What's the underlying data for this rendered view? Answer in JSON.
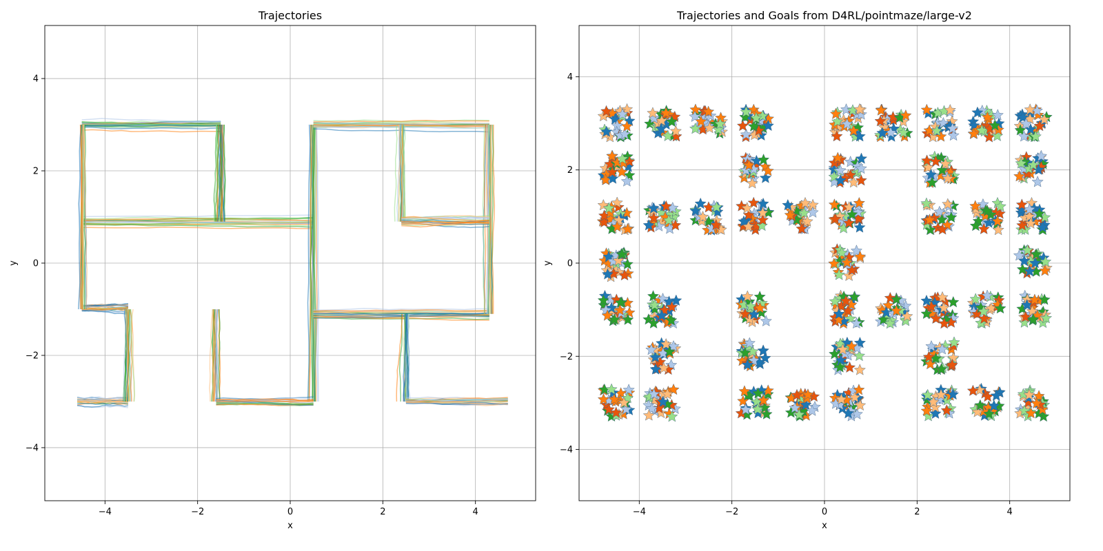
{
  "colors": {
    "palette": [
      "#1f77b4",
      "#ff7f0e",
      "#2ca02c",
      "#aec7e8",
      "#ffbb78",
      "#98df8a",
      "#e6550d"
    ],
    "grid": "#b0b0b0",
    "frame": "#000000"
  },
  "chart_data": [
    {
      "type": "line",
      "title": "Trajectories",
      "xlabel": "x",
      "ylabel": "y",
      "xlim": [
        -5.3,
        5.3
      ],
      "ylim": [
        -5.15,
        5.15
      ],
      "xticks": [
        -4,
        -2,
        0,
        2,
        4
      ],
      "yticks": [
        -4,
        -2,
        0,
        2,
        4
      ],
      "xtick_labels": [
        "−4",
        "−2",
        "0",
        "2",
        "4"
      ],
      "ytick_labels": [
        "−4",
        "−2",
        "0",
        "2",
        "4"
      ],
      "grid": true,
      "description_corridors": [
        [
          [
            -4.5,
            3.0
          ],
          [
            -1.5,
            3.0
          ]
        ],
        [
          [
            -4.5,
            0.9
          ],
          [
            0.5,
            0.9
          ]
        ],
        [
          [
            -4.5,
            -1.0
          ],
          [
            -3.5,
            -1.0
          ]
        ],
        [
          [
            -4.6,
            -3.0
          ],
          [
            -3.5,
            -3.0
          ]
        ],
        [
          [
            -4.5,
            3.0
          ],
          [
            -4.5,
            -1.0
          ]
        ],
        [
          [
            -3.5,
            -1.0
          ],
          [
            -3.5,
            -3.0
          ]
        ],
        [
          [
            -1.5,
            3.0
          ],
          [
            -1.5,
            0.9
          ]
        ],
        [
          [
            0.5,
            3.0
          ],
          [
            0.5,
            -3.0
          ]
        ],
        [
          [
            0.5,
            3.0
          ],
          [
            4.3,
            3.0
          ]
        ],
        [
          [
            0.5,
            -1.1
          ],
          [
            4.3,
            -1.1
          ]
        ],
        [
          [
            4.3,
            3.0
          ],
          [
            4.3,
            -1.1
          ]
        ],
        [
          [
            2.4,
            3.0
          ],
          [
            2.4,
            0.9
          ]
        ],
        [
          [
            2.4,
            0.9
          ],
          [
            4.3,
            0.9
          ]
        ],
        [
          [
            -1.6,
            -1.0
          ],
          [
            -1.6,
            -3.0
          ]
        ],
        [
          [
            -1.6,
            -3.0
          ],
          [
            0.5,
            -3.0
          ]
        ],
        [
          [
            2.5,
            -1.1
          ],
          [
            2.5,
            -3.0
          ]
        ],
        [
          [
            2.5,
            -3.0
          ],
          [
            4.7,
            -3.0
          ]
        ]
      ]
    },
    {
      "type": "scatter",
      "title": "Trajectories and Goals from D4RL/pointmaze/large-v2",
      "xlabel": "x",
      "ylabel": "y",
      "xlim": [
        -5.3,
        5.3
      ],
      "ylim": [
        -5.1,
        5.1
      ],
      "xticks": [
        -4,
        -2,
        0,
        2,
        4
      ],
      "yticks": [
        -4,
        -2,
        0,
        2,
        4
      ],
      "xtick_labels": [
        "−4",
        "−2",
        "0",
        "2",
        "4"
      ],
      "ytick_labels": [
        "−4",
        "−2",
        "0",
        "2",
        "4"
      ],
      "grid": true,
      "marker": "star",
      "goal_clusters": [
        [
          -4.5,
          3.0
        ],
        [
          -3.5,
          3.0
        ],
        [
          -2.5,
          3.0
        ],
        [
          -1.5,
          3.0
        ],
        [
          0.5,
          3.0
        ],
        [
          1.5,
          3.0
        ],
        [
          2.5,
          3.0
        ],
        [
          3.5,
          3.0
        ],
        [
          4.5,
          3.0
        ],
        [
          -4.5,
          2.0
        ],
        [
          -1.5,
          2.0
        ],
        [
          0.5,
          2.0
        ],
        [
          2.5,
          2.0
        ],
        [
          4.5,
          2.0
        ],
        [
          -4.5,
          1.0
        ],
        [
          -3.5,
          1.0
        ],
        [
          -2.5,
          1.0
        ],
        [
          -1.5,
          1.0
        ],
        [
          -0.5,
          1.0
        ],
        [
          0.5,
          1.0
        ],
        [
          2.5,
          1.0
        ],
        [
          3.5,
          1.0
        ],
        [
          4.5,
          1.0
        ],
        [
          -4.5,
          0.0
        ],
        [
          0.5,
          0.0
        ],
        [
          4.5,
          0.0
        ],
        [
          -4.5,
          -1.0
        ],
        [
          -3.5,
          -1.0
        ],
        [
          -1.5,
          -1.0
        ],
        [
          0.5,
          -1.0
        ],
        [
          1.5,
          -1.0
        ],
        [
          2.5,
          -1.0
        ],
        [
          3.5,
          -1.0
        ],
        [
          4.5,
          -1.0
        ],
        [
          -3.5,
          -2.0
        ],
        [
          -1.5,
          -2.0
        ],
        [
          0.5,
          -2.0
        ],
        [
          2.5,
          -2.0
        ],
        [
          -4.5,
          -3.0
        ],
        [
          -3.5,
          -3.0
        ],
        [
          -1.5,
          -3.0
        ],
        [
          -0.5,
          -3.0
        ],
        [
          0.5,
          -3.0
        ],
        [
          2.5,
          -3.0
        ],
        [
          3.5,
          -3.0
        ],
        [
          4.5,
          -3.0
        ]
      ],
      "cluster_spread": 0.3
    }
  ]
}
